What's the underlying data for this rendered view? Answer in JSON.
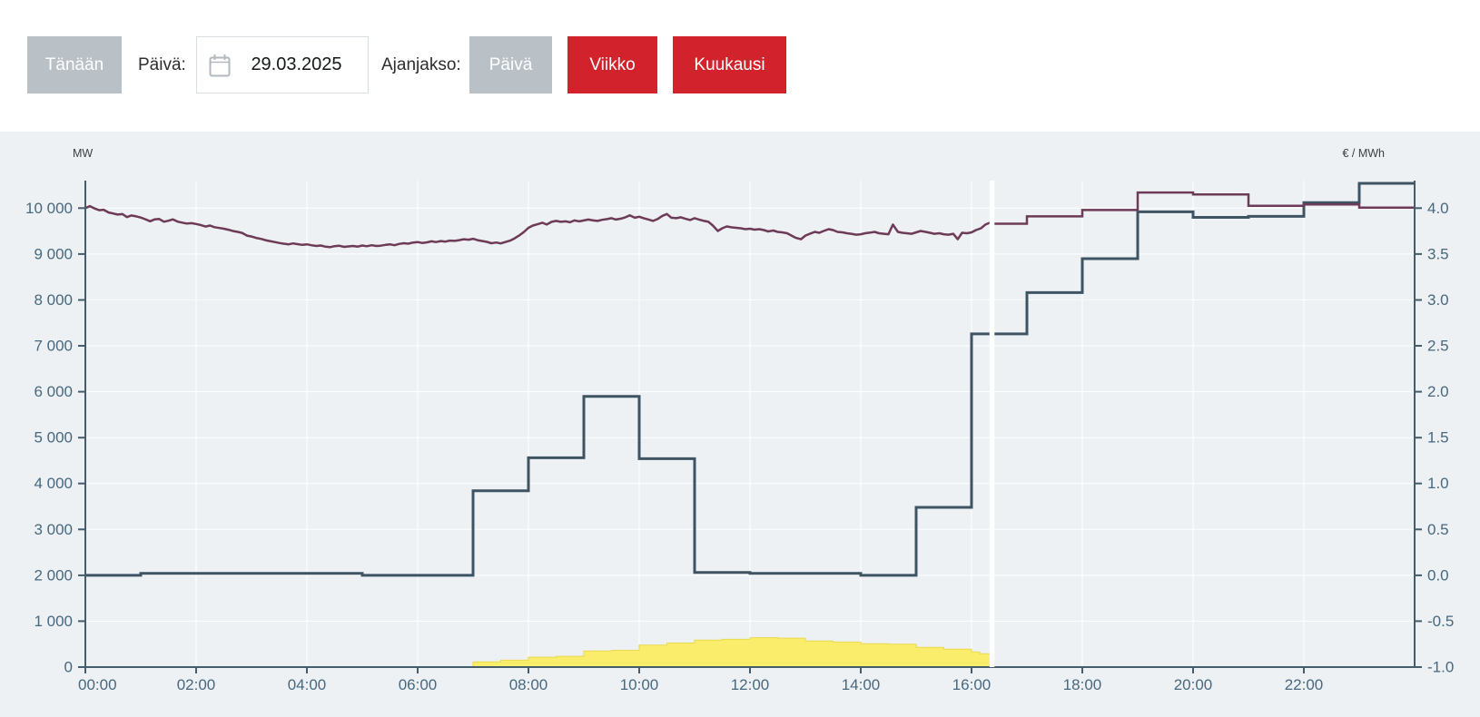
{
  "toolbar": {
    "today_button": "Tänään",
    "date_label": "Päivä:",
    "date_value": "29.03.2025",
    "period_label": "Ajanjakso:",
    "period_day": "Päivä",
    "period_week": "Viikko",
    "period_month": "Kuukausi",
    "colors": {
      "inactive_button": "#b9c0c6",
      "active_button": "#d2232d"
    }
  },
  "chart_data": {
    "type": "line",
    "title": "",
    "x_axis": {
      "unit": "time-of-day",
      "range_hours": [
        0,
        24
      ],
      "tick_interval_hours": 2,
      "tick_labels": [
        "00:00",
        "02:00",
        "04:00",
        "06:00",
        "08:00",
        "10:00",
        "12:00",
        "14:00",
        "16:00",
        "18:00",
        "20:00",
        "22:00"
      ]
    },
    "y_axis_left": {
      "title": "MW",
      "range": [
        0,
        10600
      ],
      "tick_values": [
        0,
        1000,
        2000,
        3000,
        4000,
        5000,
        6000,
        7000,
        8000,
        9000,
        10000
      ],
      "tick_labels": [
        "0",
        "1 000",
        "2 000",
        "3 000",
        "4 000",
        "5 000",
        "6 000",
        "7 000",
        "8 000",
        "9 000",
        "10 000"
      ]
    },
    "y_axis_right": {
      "title": "€ / MWh",
      "range": [
        -1.0,
        4.3
      ],
      "tick_values": [
        -1.0,
        -0.5,
        0.0,
        0.5,
        1.0,
        1.5,
        2.0,
        2.5,
        3.0,
        3.5,
        4.0
      ],
      "tick_labels": [
        "-1.0",
        "-0.5",
        "0.0",
        "0.5",
        "1.0",
        "1.5",
        "2.0",
        "2.5",
        "3.0",
        "3.5",
        "4.0"
      ]
    },
    "now_line_hour": 16.37,
    "grid": {
      "background": "#edf1f4",
      "gridline_color": "#ffffff",
      "axis_color": "#455d6b",
      "label_color": "#47687e"
    },
    "series": [
      {
        "id": "solar-area",
        "type": "step-area",
        "axis": "mw",
        "fill": "#f9ed6b",
        "edge": "#e9d94e",
        "end": 16.37,
        "points": [
          [
            7,
            115
          ],
          [
            7.5,
            150
          ],
          [
            8,
            215
          ],
          [
            8.5,
            235
          ],
          [
            9,
            350
          ],
          [
            9.5,
            365
          ],
          [
            10,
            480
          ],
          [
            10.5,
            525
          ],
          [
            11,
            590
          ],
          [
            11.5,
            605
          ],
          [
            12,
            640
          ],
          [
            12.5,
            630
          ],
          [
            13,
            570
          ],
          [
            13.5,
            545
          ],
          [
            14,
            510
          ],
          [
            14.5,
            500
          ],
          [
            15,
            430
          ],
          [
            15.5,
            390
          ],
          [
            16,
            330
          ],
          [
            16.15,
            290
          ]
        ]
      },
      {
        "id": "price-step",
        "type": "step-line",
        "axis": "eur",
        "color": "#3e5463",
        "width": 3,
        "end": 24,
        "points": [
          [
            0,
            0.0
          ],
          [
            1,
            0.02
          ],
          [
            2,
            0.02
          ],
          [
            3,
            0.02
          ],
          [
            4,
            0.02
          ],
          [
            5,
            0.0
          ],
          [
            6,
            0.0
          ],
          [
            7,
            0.92
          ],
          [
            8,
            1.28
          ],
          [
            9,
            1.95
          ],
          [
            10,
            1.27
          ],
          [
            11,
            0.03
          ],
          [
            12,
            0.02
          ],
          [
            13,
            0.02
          ],
          [
            14,
            0.0
          ],
          [
            15,
            0.74
          ],
          [
            16,
            2.63
          ],
          [
            17,
            3.08
          ],
          [
            18,
            3.45
          ],
          [
            19,
            3.96
          ],
          [
            20,
            3.9
          ],
          [
            21,
            3.91
          ],
          [
            22,
            4.06
          ],
          [
            23,
            4.27
          ]
        ]
      },
      {
        "id": "consumption-actual",
        "type": "line",
        "axis": "mw",
        "color": "#6d3a57",
        "width": 2.5,
        "points": [
          [
            0,
            10000
          ],
          [
            0.08,
            10045
          ],
          [
            0.17,
            9990
          ],
          [
            0.25,
            9955
          ],
          [
            0.33,
            9965
          ],
          [
            0.42,
            9905
          ],
          [
            0.5,
            9885
          ],
          [
            0.58,
            9860
          ],
          [
            0.67,
            9870
          ],
          [
            0.75,
            9805
          ],
          [
            0.83,
            9840
          ],
          [
            0.92,
            9820
          ],
          [
            1,
            9795
          ],
          [
            1.08,
            9760
          ],
          [
            1.17,
            9715
          ],
          [
            1.25,
            9755
          ],
          [
            1.33,
            9765
          ],
          [
            1.42,
            9705
          ],
          [
            1.5,
            9725
          ],
          [
            1.58,
            9755
          ],
          [
            1.67,
            9705
          ],
          [
            1.75,
            9685
          ],
          [
            1.83,
            9665
          ],
          [
            1.92,
            9672
          ],
          [
            2,
            9655
          ],
          [
            2.08,
            9632
          ],
          [
            2.17,
            9600
          ],
          [
            2.25,
            9622
          ],
          [
            2.33,
            9585
          ],
          [
            2.42,
            9568
          ],
          [
            2.5,
            9552
          ],
          [
            2.58,
            9530
          ],
          [
            2.67,
            9500
          ],
          [
            2.75,
            9482
          ],
          [
            2.83,
            9460
          ],
          [
            2.92,
            9402
          ],
          [
            3,
            9382
          ],
          [
            3.08,
            9352
          ],
          [
            3.17,
            9330
          ],
          [
            3.25,
            9302
          ],
          [
            3.33,
            9282
          ],
          [
            3.42,
            9262
          ],
          [
            3.5,
            9242
          ],
          [
            3.58,
            9226
          ],
          [
            3.67,
            9212
          ],
          [
            3.75,
            9232
          ],
          [
            3.83,
            9216
          ],
          [
            3.92,
            9200
          ],
          [
            4,
            9212
          ],
          [
            4.08,
            9192
          ],
          [
            4.17,
            9176
          ],
          [
            4.25,
            9186
          ],
          [
            4.33,
            9162
          ],
          [
            4.42,
            9150
          ],
          [
            4.5,
            9172
          ],
          [
            4.58,
            9182
          ],
          [
            4.67,
            9156
          ],
          [
            4.75,
            9166
          ],
          [
            4.83,
            9176
          ],
          [
            4.92,
            9162
          ],
          [
            5,
            9186
          ],
          [
            5.08,
            9170
          ],
          [
            5.17,
            9192
          ],
          [
            5.25,
            9176
          ],
          [
            5.33,
            9182
          ],
          [
            5.42,
            9200
          ],
          [
            5.5,
            9212
          ],
          [
            5.58,
            9192
          ],
          [
            5.67,
            9222
          ],
          [
            5.75,
            9236
          ],
          [
            5.83,
            9226
          ],
          [
            5.92,
            9252
          ],
          [
            6,
            9262
          ],
          [
            6.08,
            9242
          ],
          [
            6.17,
            9256
          ],
          [
            6.25,
            9276
          ],
          [
            6.33,
            9262
          ],
          [
            6.42,
            9282
          ],
          [
            6.5,
            9272
          ],
          [
            6.58,
            9292
          ],
          [
            6.67,
            9286
          ],
          [
            6.75,
            9302
          ],
          [
            6.83,
            9322
          ],
          [
            6.92,
            9312
          ],
          [
            7,
            9332
          ],
          [
            7.08,
            9302
          ],
          [
            7.17,
            9282
          ],
          [
            7.25,
            9266
          ],
          [
            7.33,
            9236
          ],
          [
            7.42,
            9252
          ],
          [
            7.5,
            9232
          ],
          [
            7.58,
            9262
          ],
          [
            7.67,
            9292
          ],
          [
            7.75,
            9342
          ],
          [
            7.83,
            9402
          ],
          [
            7.92,
            9482
          ],
          [
            8,
            9572
          ],
          [
            8.08,
            9622
          ],
          [
            8.17,
            9652
          ],
          [
            8.25,
            9682
          ],
          [
            8.33,
            9642
          ],
          [
            8.42,
            9702
          ],
          [
            8.5,
            9722
          ],
          [
            8.58,
            9702
          ],
          [
            8.67,
            9712
          ],
          [
            8.75,
            9692
          ],
          [
            8.83,
            9732
          ],
          [
            8.92,
            9712
          ],
          [
            9,
            9732
          ],
          [
            9.08,
            9752
          ],
          [
            9.17,
            9732
          ],
          [
            9.25,
            9722
          ],
          [
            9.33,
            9746
          ],
          [
            9.42,
            9762
          ],
          [
            9.5,
            9782
          ],
          [
            9.58,
            9752
          ],
          [
            9.67,
            9772
          ],
          [
            9.75,
            9802
          ],
          [
            9.83,
            9842
          ],
          [
            9.92,
            9792
          ],
          [
            10,
            9812
          ],
          [
            10.08,
            9782
          ],
          [
            10.17,
            9752
          ],
          [
            10.25,
            9722
          ],
          [
            10.33,
            9762
          ],
          [
            10.42,
            9832
          ],
          [
            10.5,
            9872
          ],
          [
            10.58,
            9792
          ],
          [
            10.67,
            9782
          ],
          [
            10.75,
            9802
          ],
          [
            10.83,
            9772
          ],
          [
            10.92,
            9742
          ],
          [
            11,
            9782
          ],
          [
            11.08,
            9752
          ],
          [
            11.17,
            9722
          ],
          [
            11.25,
            9702
          ],
          [
            11.33,
            9622
          ],
          [
            11.42,
            9502
          ],
          [
            11.5,
            9562
          ],
          [
            11.58,
            9602
          ],
          [
            11.67,
            9582
          ],
          [
            11.75,
            9572
          ],
          [
            11.83,
            9562
          ],
          [
            11.92,
            9542
          ],
          [
            12,
            9552
          ],
          [
            12.08,
            9532
          ],
          [
            12.17,
            9542
          ],
          [
            12.25,
            9522
          ],
          [
            12.33,
            9492
          ],
          [
            12.42,
            9512
          ],
          [
            12.5,
            9482
          ],
          [
            12.58,
            9472
          ],
          [
            12.67,
            9452
          ],
          [
            12.75,
            9402
          ],
          [
            12.83,
            9352
          ],
          [
            12.92,
            9322
          ],
          [
            13,
            9402
          ],
          [
            13.08,
            9442
          ],
          [
            13.17,
            9482
          ],
          [
            13.25,
            9462
          ],
          [
            13.33,
            9502
          ],
          [
            13.42,
            9542
          ],
          [
            13.5,
            9522
          ],
          [
            13.58,
            9482
          ],
          [
            13.67,
            9472
          ],
          [
            13.75,
            9452
          ],
          [
            13.83,
            9442
          ],
          [
            13.92,
            9422
          ],
          [
            14,
            9432
          ],
          [
            14.08,
            9452
          ],
          [
            14.17,
            9466
          ],
          [
            14.25,
            9482
          ],
          [
            14.33,
            9452
          ],
          [
            14.42,
            9442
          ],
          [
            14.5,
            9432
          ],
          [
            14.58,
            9642
          ],
          [
            14.67,
            9482
          ],
          [
            14.75,
            9462
          ],
          [
            14.83,
            9452
          ],
          [
            14.92,
            9442
          ],
          [
            15,
            9472
          ],
          [
            15.08,
            9502
          ],
          [
            15.17,
            9482
          ],
          [
            15.25,
            9462
          ],
          [
            15.33,
            9442
          ],
          [
            15.42,
            9452
          ],
          [
            15.5,
            9432
          ],
          [
            15.58,
            9422
          ],
          [
            15.67,
            9442
          ],
          [
            15.75,
            9322
          ],
          [
            15.83,
            9462
          ],
          [
            15.92,
            9452
          ],
          [
            16,
            9472
          ],
          [
            16.08,
            9522
          ],
          [
            16.17,
            9562
          ],
          [
            16.25,
            9642
          ],
          [
            16.37,
            9700
          ]
        ]
      },
      {
        "id": "consumption-forecast",
        "type": "step-line",
        "axis": "mw",
        "color": "#6d3a57",
        "width": 2.5,
        "end": 24,
        "points": [
          [
            16.37,
            9660
          ],
          [
            17,
            9820
          ],
          [
            18,
            9960
          ],
          [
            19,
            10340
          ],
          [
            20,
            10300
          ],
          [
            21,
            10050
          ],
          [
            22,
            10080
          ],
          [
            23,
            10010
          ]
        ]
      }
    ]
  }
}
